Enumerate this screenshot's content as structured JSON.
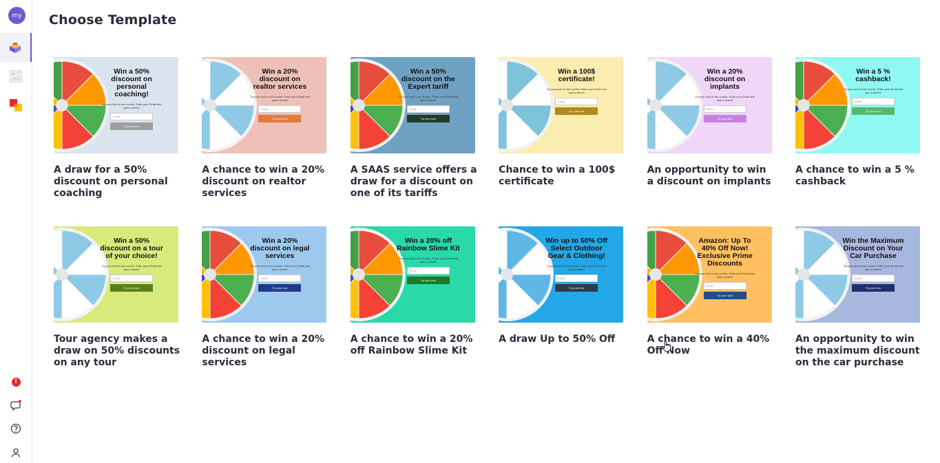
{
  "user": {
    "avatar_initials": "my"
  },
  "header": {
    "title": "Choose Template"
  },
  "sidebar": {
    "nav": [
      {
        "name": "templates",
        "icon": "box-icon"
      },
      {
        "name": "layouts",
        "icon": "layout-icon"
      },
      {
        "name": "shapes",
        "icon": "shapes-icon"
      }
    ],
    "bottom": [
      {
        "name": "alerts",
        "icon": "alert-icon",
        "label": "!"
      },
      {
        "name": "chat",
        "icon": "chat-icon"
      },
      {
        "name": "help",
        "icon": "help-icon"
      },
      {
        "name": "profile",
        "icon": "user-icon"
      }
    ]
  },
  "common": {
    "subline": "Try your luck to win a prize. Enter your Email and spin a wheel!",
    "email_placeholder": "Email",
    "try_label": "Try your luck"
  },
  "templates": [
    {
      "title": "A draw for a 50% discount on personal coaching",
      "headline": "Win a 50% discount on personal coaching!",
      "bg": "#dbe3ee",
      "btn": "#9e9e9e",
      "wheel": [
        "#e74c3c",
        "#ff9800",
        "#4caf50",
        "#f44336",
        "#ffc107",
        "#3f51b5",
        "#ffb300",
        "#43a047"
      ]
    },
    {
      "title": "A chance to win a 20% discount on realtor services",
      "headline": "Win a 20% discount on realtor services",
      "bg": "#efc0b8",
      "btn": "#e07b39",
      "wheel": [
        "#8ecae6",
        "#ffffff",
        "#8ecae6",
        "#ffffff",
        "#8ecae6",
        "#ffffff",
        "#8ecae6",
        "#ffffff"
      ]
    },
    {
      "title": "A SAAS service offers a draw for a discount on one of its tariffs",
      "headline": "Win a 50% discount on the Expert tariff",
      "bg": "#6fa2c2",
      "btn": "#1f3b2a",
      "wheel": [
        "#e74c3c",
        "#ff9800",
        "#4caf50",
        "#f44336",
        "#ffc107",
        "#3f51b5",
        "#ffb300",
        "#43a047"
      ]
    },
    {
      "title": "Chance to win a 100$ certificate",
      "headline": "Win a 100$ certificate!",
      "bg": "#fbecb0",
      "btn": "#b08a1e",
      "wheel": [
        "#7ec3dc",
        "#ffffff",
        "#7ec3dc",
        "#ffffff",
        "#7ec3dc",
        "#ffffff",
        "#7ec3dc",
        "#ffffff"
      ]
    },
    {
      "title": "An opportunity to win a discount on implants",
      "headline": "Win a 20% discount on implants",
      "bg": "#f0d7f8",
      "btn": "#c583e0",
      "wheel": [
        "#8ecae6",
        "#ffffff",
        "#8ecae6",
        "#ffffff",
        "#8ecae6",
        "#ffffff",
        "#8ecae6",
        "#ffffff"
      ]
    },
    {
      "title": "A chance to win a 5 % cashback",
      "headline": "Win a 5 % cashback!",
      "bg": "#8ff8f2",
      "btn": "#58b86a",
      "wheel": [
        "#e74c3c",
        "#ff9800",
        "#4caf50",
        "#f44336",
        "#ffc107",
        "#3f51b5",
        "#ffb300",
        "#43a047"
      ]
    },
    {
      "title": "Tour agency makes a draw on 50% discounts on any tour",
      "headline": "Win a 50% discount on a tour of your choice!",
      "bg": "#d9ea7c",
      "btn": "#5a7f1a",
      "wheel": [
        "#8ecae6",
        "#ffffff",
        "#8ecae6",
        "#ffffff",
        "#8ecae6",
        "#ffffff",
        "#8ecae6",
        "#ffffff"
      ]
    },
    {
      "title": "A chance to win a 20% discount on legal services",
      "headline": "Win a 20% discount on legal services",
      "bg": "#9ec9ee",
      "btn": "#1f3a8a",
      "wheel": [
        "#e74c3c",
        "#ff9800",
        "#4caf50",
        "#f44336",
        "#ffc107",
        "#3f51b5",
        "#ffb300",
        "#43a047"
      ]
    },
    {
      "title": "A chance to win a 20% off Rainbow Slime Kit",
      "headline": "Win a 20% off Rainbow Slime Kit",
      "bg": "#2ad9a8",
      "btn": "#1a7a2c",
      "wheel": [
        "#e74c3c",
        "#ff9800",
        "#4caf50",
        "#f44336",
        "#ffc107",
        "#3f51b5",
        "#ffb300",
        "#43a047"
      ]
    },
    {
      "title": "A draw Up to 50% Off",
      "headline": "Win up to 50% Off Select Outdoor Gear & Clothing!",
      "bg": "#23a7e6",
      "btn": "#2d3a4a",
      "wheel": [
        "#5fb7e8",
        "#ffffff",
        "#5fb7e8",
        "#ffffff",
        "#5fb7e8",
        "#ffffff",
        "#5fb7e8",
        "#ffffff"
      ]
    },
    {
      "title": "A chance to win a 40% Off Now",
      "headline": "Amazon: Up To 40% Off Now! Exclusive Prime Discounts",
      "bg": "#ffc061",
      "btn": "#1f4e8a",
      "wheel": [
        "#e74c3c",
        "#ff9800",
        "#4caf50",
        "#f44336",
        "#ffc107",
        "#3f51b5",
        "#ffb300",
        "#43a047"
      ]
    },
    {
      "title": "An opportunity to win the maximum discount on the car purchase",
      "headline": "Win the Maximum Discount on Your Car Purchase",
      "bg": "#a8b7de",
      "btn": "#1f2f6e",
      "wheel": [
        "#8ecae6",
        "#ffffff",
        "#8ecae6",
        "#ffffff",
        "#8ecae6",
        "#ffffff",
        "#8ecae6",
        "#ffffff"
      ]
    }
  ]
}
